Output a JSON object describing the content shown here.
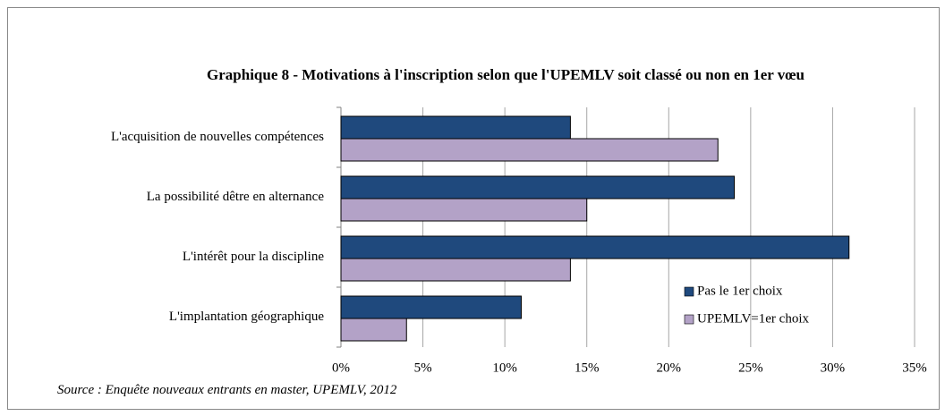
{
  "chart_data": {
    "type": "barh",
    "title": "Graphique 8 - Motivations à l'inscription selon que l'UPEMLV soit classé ou non en 1er vœu",
    "categories": [
      "L'acquisition de nouvelles compétences",
      "La possibilité dêtre en alternance",
      "L'intérêt pour la discipline",
      "L'implantation géographique"
    ],
    "series": [
      {
        "name": "Pas le 1er choix",
        "color": "#1f497d",
        "values": [
          14,
          24,
          31,
          11
        ]
      },
      {
        "name": "UPEMLV=1er choix",
        "color": "#b3a2c7",
        "values": [
          23,
          15,
          14,
          4
        ]
      }
    ],
    "xlim": [
      0,
      35
    ],
    "xticks": [
      {
        "value": 0,
        "label": "0%"
      },
      {
        "value": 5,
        "label": "5%"
      },
      {
        "value": 10,
        "label": "10%"
      },
      {
        "value": 15,
        "label": "15%"
      },
      {
        "value": 20,
        "label": "20%"
      },
      {
        "value": 25,
        "label": "25%"
      },
      {
        "value": 30,
        "label": "30%"
      },
      {
        "value": 35,
        "label": "35%"
      }
    ],
    "grid": true,
    "legend": "lower right",
    "source": "Source : Enquête nouveaux entrants en master, UPEMLV, 2012"
  }
}
